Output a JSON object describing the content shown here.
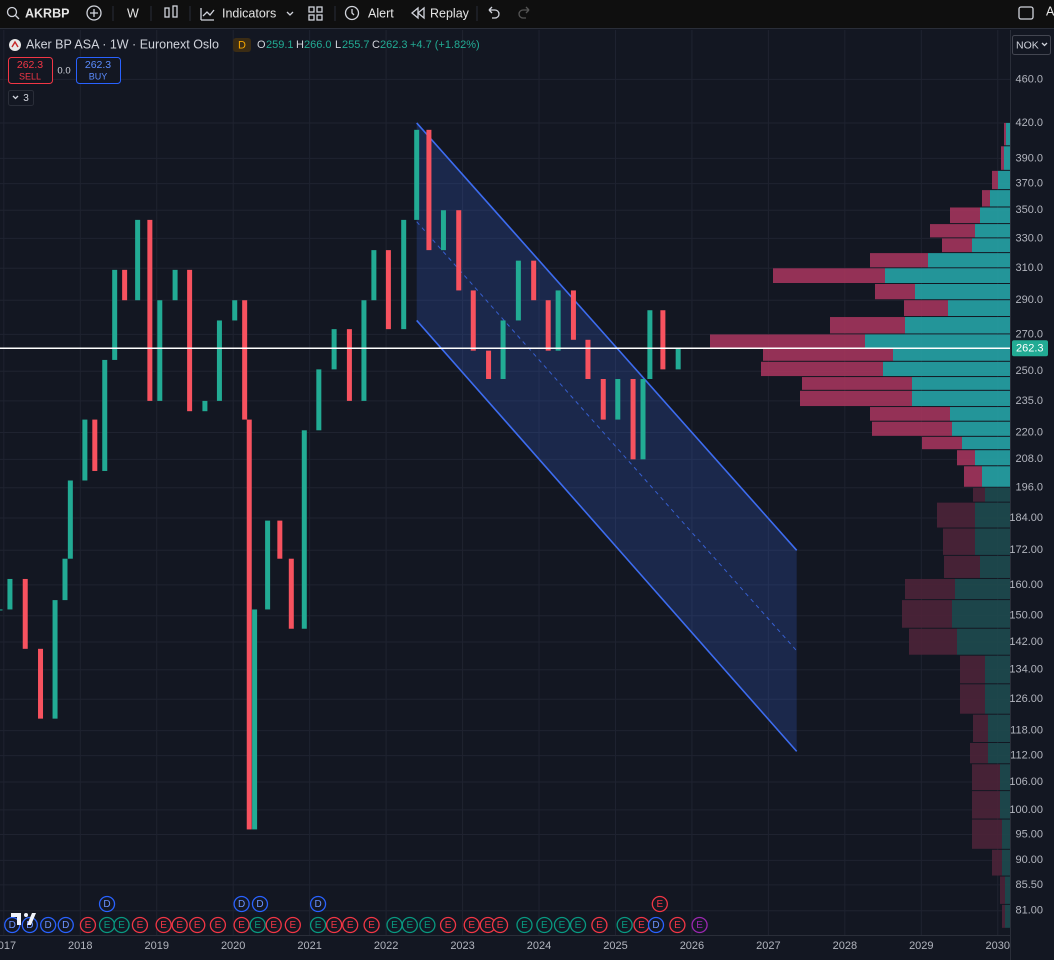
{
  "toolbar": {
    "symbol": "AKRBP",
    "interval": "W",
    "indicators": "Indicators",
    "alert": "Alert",
    "replay": "Replay",
    "account": "A"
  },
  "legend": {
    "title": "Aker BP ASA · 1W · Euronext Oslo",
    "badge": "D",
    "open_label": "O",
    "open": 259.1,
    "high_label": "H",
    "high": "266.0",
    "low_label": "L",
    "low": 255.7,
    "close_label": "C",
    "close": 262.3,
    "change": "+4.7 (+1.82%)",
    "sell_price": 262.3,
    "sell": "SELL",
    "spread": "0.0",
    "buy_price": 262.3,
    "buy": "BUY",
    "collapsed": 3,
    "currency": "NOK"
  },
  "chart_data": {
    "type": "candlestick",
    "log_scale": true,
    "grid": true,
    "up_color": "#22ab94",
    "down_color": "#f7525f",
    "x": [
      2016.95,
      2017.08,
      2017.28,
      2017.48,
      2017.67,
      2017.8,
      2017.87,
      2018.06,
      2018.19,
      2018.32,
      2018.45,
      2018.58,
      2018.75,
      2018.91,
      2019.04,
      2019.24,
      2019.43,
      2019.63,
      2019.82,
      2020.02,
      2020.15,
      2020.21,
      2020.28,
      2020.45,
      2020.61,
      2020.76,
      2020.93,
      2021.12,
      2021.32,
      2021.52,
      2021.71,
      2021.84,
      2022.03,
      2022.23,
      2022.4,
      2022.56,
      2022.75,
      2022.95,
      2023.14,
      2023.34,
      2023.53,
      2023.73,
      2023.93,
      2024.12,
      2024.25,
      2024.45,
      2024.64,
      2024.84,
      2025.03,
      2025.23,
      2025.36,
      2025.45,
      2025.62,
      2025.82
    ],
    "values": [
      152,
      162,
      140,
      121,
      155,
      169,
      199,
      226,
      203,
      256,
      309,
      290,
      343,
      235,
      290,
      309,
      230,
      235,
      278,
      290,
      226,
      96,
      152,
      183,
      169,
      146,
      221,
      251,
      273,
      235,
      290,
      322,
      273,
      343,
      414,
      322,
      350,
      296,
      261,
      246,
      278,
      315,
      290,
      261,
      296,
      267,
      246,
      226,
      246,
      208,
      246,
      284,
      251,
      262.3
    ],
    "xlim": [
      2016.95,
      2030.16
    ],
    "xticks": [
      2017,
      2018,
      2019,
      2020,
      2021,
      2022,
      2023,
      2024,
      2025,
      2026,
      2027,
      2028,
      2029,
      2030
    ],
    "ylim": [
      77,
      510
    ],
    "yticks": [
      {
        "value": 460,
        "label": "460.0"
      },
      {
        "value": 420,
        "label": "420.0"
      },
      {
        "value": 390,
        "label": "390.0"
      },
      {
        "value": 370,
        "label": "370.0"
      },
      {
        "value": 350,
        "label": "350.0"
      },
      {
        "value": 330,
        "label": "330.0"
      },
      {
        "value": 310,
        "label": "310.0"
      },
      {
        "value": 290,
        "label": "290.0"
      },
      {
        "value": 270,
        "label": "270.0"
      },
      {
        "value": 250,
        "label": "250.0"
      },
      {
        "value": 235,
        "label": "235.0"
      },
      {
        "value": 220,
        "label": "220.0"
      },
      {
        "value": 208,
        "label": "208.0"
      },
      {
        "value": 196,
        "label": "196.0"
      },
      {
        "value": 184,
        "label": "184.00"
      },
      {
        "value": 172,
        "label": "172.00"
      },
      {
        "value": 160,
        "label": "160.00"
      },
      {
        "value": 150,
        "label": "150.00"
      },
      {
        "value": 142,
        "label": "142.00"
      },
      {
        "value": 134,
        "label": "134.00"
      },
      {
        "value": 126,
        "label": "126.00"
      },
      {
        "value": 118,
        "label": "118.00"
      },
      {
        "value": 112,
        "label": "112.00"
      },
      {
        "value": 106,
        "label": "106.00"
      },
      {
        "value": 100,
        "label": "100.00"
      },
      {
        "value": 95,
        "label": "95.00"
      },
      {
        "value": 90,
        "label": "90.00"
      },
      {
        "value": 85.5,
        "label": "85.50"
      },
      {
        "value": 81,
        "label": "81.00"
      }
    ],
    "last_price": 262.3,
    "last_price_color": "#22ab94",
    "channel": {
      "color": "#3d6cf0",
      "x": [
        2022.4,
        2027.37
      ],
      "upper": [
        420,
        172
      ],
      "lower": [
        278,
        113
      ]
    },
    "volume_profile": {
      "value_area_low": 196,
      "up_color": "#26a3a6",
      "down_color": "#a3345c",
      "up_dim_color": "#1e4a4f",
      "down_dim_color": "#4c2438",
      "rows": [
        {
          "low": 400,
          "high": 420,
          "up": 4,
          "down": 2
        },
        {
          "low": 380,
          "high": 400,
          "up": 6,
          "down": 3
        },
        {
          "low": 365,
          "high": 380,
          "up": 12,
          "down": 6
        },
        {
          "low": 352,
          "high": 365,
          "up": 20,
          "down": 8
        },
        {
          "low": 340,
          "high": 352,
          "up": 30,
          "down": 30
        },
        {
          "low": 330,
          "high": 340,
          "up": 35,
          "down": 45
        },
        {
          "low": 320,
          "high": 330,
          "up": 38,
          "down": 30
        },
        {
          "low": 310,
          "high": 320,
          "up": 82,
          "down": 58
        },
        {
          "low": 300,
          "high": 310,
          "up": 125,
          "down": 112
        },
        {
          "low": 290,
          "high": 300,
          "up": 95,
          "down": 40
        },
        {
          "low": 280,
          "high": 290,
          "up": 62,
          "down": 44
        },
        {
          "low": 270,
          "high": 280,
          "up": 105,
          "down": 75
        },
        {
          "low": 262,
          "high": 270,
          "up": 145,
          "down": 155
        },
        {
          "low": 255,
          "high": 262,
          "up": 117,
          "down": 130
        },
        {
          "low": 247,
          "high": 255,
          "up": 127,
          "down": 122
        },
        {
          "low": 240,
          "high": 247,
          "up": 98,
          "down": 110
        },
        {
          "low": 232,
          "high": 240,
          "up": 98,
          "down": 112
        },
        {
          "low": 225,
          "high": 232,
          "up": 60,
          "down": 80
        },
        {
          "low": 218,
          "high": 225,
          "up": 58,
          "down": 80
        },
        {
          "low": 212,
          "high": 218,
          "up": 48,
          "down": 40
        },
        {
          "low": 205,
          "high": 212,
          "up": 35,
          "down": 18
        },
        {
          "low": 196,
          "high": 205,
          "up": 28,
          "down": 18
        },
        {
          "low": 190,
          "high": 196,
          "up": 25,
          "down": 12
        },
        {
          "low": 180,
          "high": 190,
          "up": 35,
          "down": 38
        },
        {
          "low": 170,
          "high": 180,
          "up": 35,
          "down": 32
        },
        {
          "low": 162,
          "high": 170,
          "up": 30,
          "down": 36
        },
        {
          "low": 155,
          "high": 162,
          "up": 55,
          "down": 50
        },
        {
          "low": 146,
          "high": 155,
          "up": 58,
          "down": 50
        },
        {
          "low": 138,
          "high": 146,
          "up": 53,
          "down": 48
        },
        {
          "low": 130,
          "high": 138,
          "up": 25,
          "down": 25
        },
        {
          "low": 122,
          "high": 130,
          "up": 25,
          "down": 25
        },
        {
          "low": 115,
          "high": 122,
          "up": 22,
          "down": 15
        },
        {
          "low": 110,
          "high": 115,
          "up": 22,
          "down": 18
        },
        {
          "low": 104,
          "high": 110,
          "up": 10,
          "down": 28
        },
        {
          "low": 98,
          "high": 104,
          "up": 10,
          "down": 28
        },
        {
          "low": 92,
          "high": 98,
          "up": 8,
          "down": 30
        },
        {
          "low": 87,
          "high": 92,
          "up": 8,
          "down": 10
        },
        {
          "low": 82,
          "high": 87,
          "up": 5,
          "down": 5
        },
        {
          "low": 78,
          "high": 82,
          "up": 5,
          "down": 3
        }
      ]
    },
    "events": [
      {
        "x": 2017.11,
        "label": "D",
        "color": "#2962ff"
      },
      {
        "x": 2017.34,
        "label": "D",
        "color": "#2962ff"
      },
      {
        "x": 2017.58,
        "label": "D",
        "color": "#2962ff"
      },
      {
        "x": 2017.81,
        "label": "D",
        "color": "#2962ff"
      },
      {
        "x": 2018.1,
        "label": "E",
        "color": "#f23645"
      },
      {
        "x": 2018.35,
        "label": "E",
        "color": "#089981"
      },
      {
        "x": 2018.35,
        "label": "D",
        "color": "#2962ff"
      },
      {
        "x": 2018.54,
        "label": "E",
        "color": "#089981"
      },
      {
        "x": 2018.78,
        "label": "E",
        "color": "#f23645"
      },
      {
        "x": 2019.09,
        "label": "E",
        "color": "#f23645"
      },
      {
        "x": 2019.3,
        "label": "E",
        "color": "#f23645"
      },
      {
        "x": 2019.53,
        "label": "E",
        "color": "#f23645"
      },
      {
        "x": 2019.8,
        "label": "E",
        "color": "#f23645"
      },
      {
        "x": 2020.11,
        "label": "E",
        "color": "#f23645"
      },
      {
        "x": 2020.11,
        "label": "D",
        "color": "#2962ff"
      },
      {
        "x": 2020.32,
        "label": "E",
        "color": "#089981"
      },
      {
        "x": 2020.35,
        "label": "D",
        "color": "#2962ff"
      },
      {
        "x": 2020.53,
        "label": "E",
        "color": "#f23645"
      },
      {
        "x": 2020.78,
        "label": "E",
        "color": "#f23645"
      },
      {
        "x": 2021.11,
        "label": "E",
        "color": "#089981"
      },
      {
        "x": 2021.11,
        "label": "D",
        "color": "#2962ff"
      },
      {
        "x": 2021.32,
        "label": "E",
        "color": "#f23645"
      },
      {
        "x": 2021.53,
        "label": "E",
        "color": "#f23645"
      },
      {
        "x": 2021.81,
        "label": "E",
        "color": "#f23645"
      },
      {
        "x": 2022.11,
        "label": "E",
        "color": "#089981"
      },
      {
        "x": 2022.31,
        "label": "E",
        "color": "#089981"
      },
      {
        "x": 2022.54,
        "label": "E",
        "color": "#089981"
      },
      {
        "x": 2022.81,
        "label": "E",
        "color": "#f23645"
      },
      {
        "x": 2023.12,
        "label": "E",
        "color": "#f23645"
      },
      {
        "x": 2023.33,
        "label": "E",
        "color": "#f23645"
      },
      {
        "x": 2023.49,
        "label": "E",
        "color": "#f23645"
      },
      {
        "x": 2023.81,
        "label": "E",
        "color": "#089981"
      },
      {
        "x": 2024.07,
        "label": "E",
        "color": "#089981"
      },
      {
        "x": 2024.3,
        "label": "E",
        "color": "#089981"
      },
      {
        "x": 2024.51,
        "label": "E",
        "color": "#089981"
      },
      {
        "x": 2024.79,
        "label": "E",
        "color": "#f23645"
      },
      {
        "x": 2025.12,
        "label": "E",
        "color": "#089981"
      },
      {
        "x": 2025.34,
        "label": "E",
        "color": "#f23645"
      },
      {
        "x": 2025.53,
        "label": "D",
        "color": "#2962ff"
      },
      {
        "x": 2025.58,
        "label": "E",
        "color": "#f23645"
      },
      {
        "x": 2025.81,
        "label": "E",
        "color": "#f23645"
      },
      {
        "x": 2026.1,
        "label": "E",
        "color": "#9c27b0"
      }
    ]
  }
}
